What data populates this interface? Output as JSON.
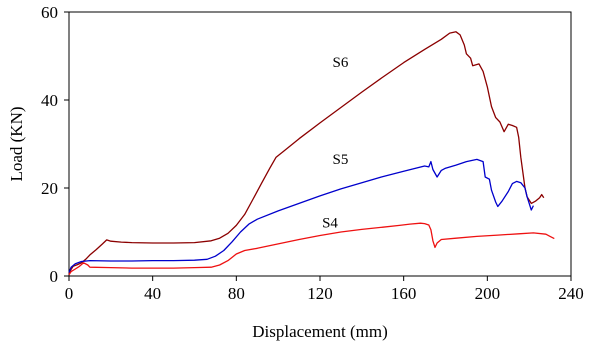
{
  "chart_data": {
    "type": "line",
    "title": "",
    "xlabel": "Displacement (mm)",
    "ylabel": "Load (KN)",
    "xlim": [
      0,
      240
    ],
    "ylim": [
      0,
      60
    ],
    "xticks": [
      0,
      40,
      80,
      120,
      160,
      200,
      240
    ],
    "yticks": [
      0,
      20,
      40,
      60
    ],
    "grid": false,
    "legend": "none",
    "series": [
      {
        "name": "S6",
        "color": "#8b0000",
        "label_at": [
          126,
          47.5
        ],
        "points": [
          [
            0,
            0.5
          ],
          [
            1,
            1.5
          ],
          [
            2,
            2.2
          ],
          [
            4,
            2.6
          ],
          [
            6,
            3.0
          ],
          [
            8,
            3.8
          ],
          [
            10,
            4.8
          ],
          [
            13,
            6.0
          ],
          [
            16,
            7.3
          ],
          [
            18,
            8.2
          ],
          [
            20,
            7.9
          ],
          [
            25,
            7.7
          ],
          [
            30,
            7.6
          ],
          [
            40,
            7.5
          ],
          [
            50,
            7.5
          ],
          [
            60,
            7.6
          ],
          [
            68,
            8.0
          ],
          [
            72,
            8.6
          ],
          [
            76,
            9.7
          ],
          [
            80,
            11.5
          ],
          [
            84,
            14.0
          ],
          [
            88,
            17.5
          ],
          [
            92,
            21.0
          ],
          [
            96,
            24.5
          ],
          [
            99,
            27.0
          ],
          [
            103,
            28.5
          ],
          [
            110,
            31.2
          ],
          [
            120,
            34.8
          ],
          [
            130,
            38.3
          ],
          [
            140,
            41.8
          ],
          [
            150,
            45.2
          ],
          [
            160,
            48.5
          ],
          [
            170,
            51.5
          ],
          [
            178,
            53.8
          ],
          [
            182,
            55.2
          ],
          [
            185,
            55.5
          ],
          [
            187,
            54.8
          ],
          [
            189,
            52.5
          ],
          [
            190,
            50.5
          ],
          [
            192,
            49.5
          ],
          [
            193,
            47.8
          ],
          [
            196,
            48.2
          ],
          [
            198,
            46.5
          ],
          [
            200,
            43.0
          ],
          [
            202,
            38.5
          ],
          [
            204,
            36.0
          ],
          [
            206,
            35.0
          ],
          [
            208,
            32.8
          ],
          [
            210,
            34.5
          ],
          [
            212,
            34.2
          ],
          [
            214,
            33.8
          ],
          [
            215,
            31.5
          ],
          [
            216,
            27.0
          ],
          [
            217,
            23.5
          ],
          [
            218,
            20.0
          ],
          [
            219,
            18.0
          ],
          [
            221,
            16.5
          ],
          [
            223,
            17.0
          ],
          [
            225,
            17.8
          ],
          [
            226,
            18.5
          ],
          [
            227,
            17.8
          ]
        ]
      },
      {
        "name": "S5",
        "color": "#0000cc",
        "label_at": [
          126,
          25.5
        ],
        "points": [
          [
            0,
            0.8
          ],
          [
            1,
            2.0
          ],
          [
            3,
            2.8
          ],
          [
            6,
            3.3
          ],
          [
            10,
            3.5
          ],
          [
            20,
            3.4
          ],
          [
            30,
            3.4
          ],
          [
            40,
            3.5
          ],
          [
            50,
            3.5
          ],
          [
            60,
            3.6
          ],
          [
            66,
            3.8
          ],
          [
            70,
            4.5
          ],
          [
            74,
            5.8
          ],
          [
            78,
            7.8
          ],
          [
            82,
            10.0
          ],
          [
            86,
            11.8
          ],
          [
            90,
            12.9
          ],
          [
            100,
            14.8
          ],
          [
            110,
            16.5
          ],
          [
            120,
            18.2
          ],
          [
            130,
            19.8
          ],
          [
            140,
            21.2
          ],
          [
            150,
            22.6
          ],
          [
            160,
            23.8
          ],
          [
            170,
            25.0
          ],
          [
            172,
            24.8
          ],
          [
            173,
            26.0
          ],
          [
            174,
            24.2
          ],
          [
            176,
            22.5
          ],
          [
            178,
            24.0
          ],
          [
            180,
            24.5
          ],
          [
            185,
            25.2
          ],
          [
            190,
            26.0
          ],
          [
            195,
            26.5
          ],
          [
            198,
            26.0
          ],
          [
            199,
            22.5
          ],
          [
            201,
            22.0
          ],
          [
            202,
            19.5
          ],
          [
            204,
            16.8
          ],
          [
            205,
            15.8
          ],
          [
            207,
            17.0
          ],
          [
            210,
            19.2
          ],
          [
            212,
            21.0
          ],
          [
            214,
            21.5
          ],
          [
            216,
            21.2
          ],
          [
            218,
            20.0
          ],
          [
            219,
            18.0
          ],
          [
            220,
            16.5
          ],
          [
            221,
            15.0
          ],
          [
            222,
            16.0
          ]
        ]
      },
      {
        "name": "S4",
        "color": "#ee1111",
        "label_at": [
          121,
          11.0
        ],
        "points": [
          [
            0,
            0.3
          ],
          [
            1,
            1.0
          ],
          [
            3,
            1.6
          ],
          [
            5,
            2.2
          ],
          [
            7,
            3.0
          ],
          [
            9,
            2.5
          ],
          [
            10,
            2.0
          ],
          [
            20,
            1.9
          ],
          [
            30,
            1.8
          ],
          [
            40,
            1.8
          ],
          [
            50,
            1.8
          ],
          [
            60,
            1.9
          ],
          [
            68,
            2.0
          ],
          [
            72,
            2.5
          ],
          [
            76,
            3.5
          ],
          [
            80,
            5.0
          ],
          [
            84,
            5.8
          ],
          [
            90,
            6.3
          ],
          [
            100,
            7.3
          ],
          [
            110,
            8.3
          ],
          [
            120,
            9.2
          ],
          [
            130,
            10.0
          ],
          [
            140,
            10.6
          ],
          [
            150,
            11.1
          ],
          [
            158,
            11.5
          ],
          [
            163,
            11.8
          ],
          [
            168,
            12.0
          ],
          [
            170,
            11.9
          ],
          [
            172,
            11.6
          ],
          [
            173,
            10.5
          ],
          [
            174,
            8.0
          ],
          [
            175,
            6.5
          ],
          [
            176,
            7.5
          ],
          [
            178,
            8.3
          ],
          [
            185,
            8.6
          ],
          [
            195,
            9.0
          ],
          [
            205,
            9.3
          ],
          [
            215,
            9.6
          ],
          [
            222,
            9.8
          ],
          [
            228,
            9.5
          ],
          [
            230,
            9.0
          ],
          [
            232,
            8.5
          ]
        ]
      }
    ]
  }
}
